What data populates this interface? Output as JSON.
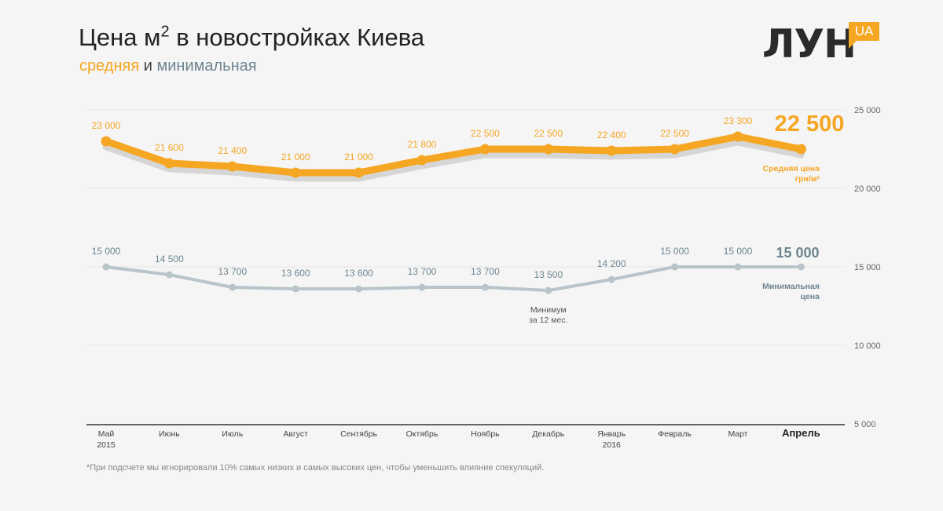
{
  "header": {
    "title_main": "Цена м",
    "title_sup": "2",
    "title_rest": " в новостройках Киева",
    "subtitle_avg": "средняя",
    "subtitle_and": " и ",
    "subtitle_min": "минимальная"
  },
  "logo": {
    "text": "ЛУН",
    "badge": "UA"
  },
  "footnote": "*При подсчете мы игнорировали 10% самых низких и самых высоких цен, чтобы уменьшить влияние спекуляций.",
  "colors": {
    "average": "#f5a623",
    "minimum": "#b8c4c9",
    "minimum_text": "#6e8591",
    "shadow": "#d6d6d6",
    "grid": "#e6e6e6",
    "axis": "#333333"
  },
  "chart_data": {
    "type": "line",
    "title": "Цена м2 в новостройках Киева",
    "categories": [
      "Май\n2015",
      "Июнь",
      "Июль",
      "Август",
      "Сентябрь",
      "Октябрь",
      "Ноябрь",
      "Декабрь",
      "Январь\n2016",
      "Февраль",
      "Март",
      "Апрель"
    ],
    "highlight_category": "Апрель",
    "ylim": [
      5000,
      25000
    ],
    "yticks": [
      5000,
      10000,
      15000,
      20000,
      25000
    ],
    "ytick_labels": [
      "5 000",
      "10 000",
      "15 000",
      "20 000",
      "25 000"
    ],
    "grid": true,
    "series": [
      {
        "values": [
          23000,
          21600,
          21400,
          21000,
          21000,
          21800,
          22500,
          22500,
          22400,
          22500,
          23300,
          22500
        ],
        "labels": [
          "23 000",
          "21 600",
          "21 400",
          "21 000",
          "21 000",
          "21 800",
          "22 500",
          "22 500",
          "22 400",
          "22 500",
          "23 300",
          "22 500"
        ],
        "end_label": "22 500",
        "end_caption": [
          "Средняя цена",
          "грн/м²"
        ]
      },
      {
        "values": [
          15000,
          14500,
          13700,
          13600,
          13600,
          13700,
          13700,
          13500,
          14200,
          15000,
          15000,
          15000
        ],
        "labels": [
          "15 000",
          "14 500",
          "13 700",
          "13 600",
          "13 600",
          "13 700",
          "13 700",
          "13 500",
          "14 200",
          "15 000",
          "15 000",
          "15 000"
        ],
        "end_label": "15 000",
        "end_caption": [
          "Минимальная",
          "цена"
        ]
      }
    ],
    "annotations": [
      {
        "series": 1,
        "index": 7,
        "text": [
          "Минимум",
          "за 12 мес."
        ]
      }
    ]
  }
}
